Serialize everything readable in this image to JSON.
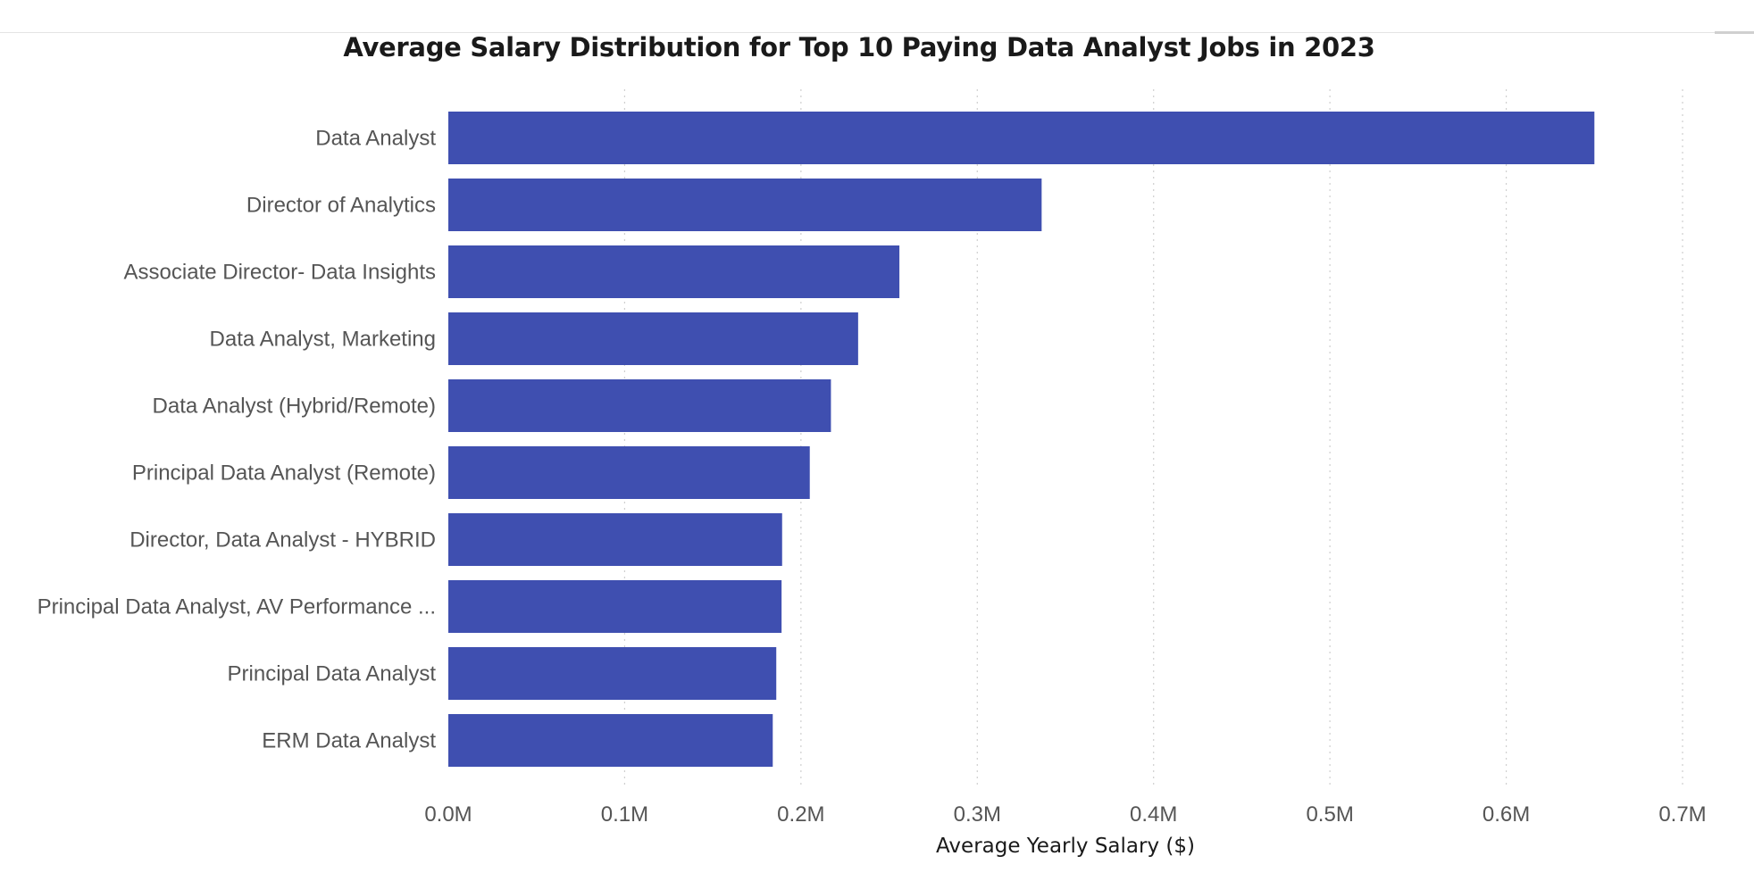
{
  "chart_data": {
    "type": "bar",
    "orientation": "horizontal",
    "title": "Average Salary Distribution for Top 10 Paying Data Analyst Jobs in 2023",
    "xlabel": "Average Yearly Salary ($)",
    "ylabel": "",
    "categories": [
      "Data Analyst",
      "Director of Analytics",
      "Associate Director- Data Insights",
      "Data Analyst, Marketing",
      "Data Analyst (Hybrid/Remote)",
      "Principal Data Analyst (Remote)",
      "Director, Data Analyst - HYBRID",
      "Principal Data Analyst, AV Performance ...",
      "Principal Data Analyst",
      "ERM Data Analyst"
    ],
    "values": [
      650000,
      336500,
      255829,
      232423,
      217000,
      205000,
      189309,
      189000,
      186000,
      184000
    ],
    "xlim": [
      0,
      700000
    ],
    "xticks": [
      0,
      100000,
      200000,
      300000,
      400000,
      500000,
      600000,
      700000
    ],
    "xtick_labels": [
      "0.0M",
      "0.1M",
      "0.2M",
      "0.3M",
      "0.4M",
      "0.5M",
      "0.6M",
      "0.7M"
    ],
    "grid": "vertical dotted",
    "bar_color": "#3f4fb0",
    "legend": "none"
  }
}
